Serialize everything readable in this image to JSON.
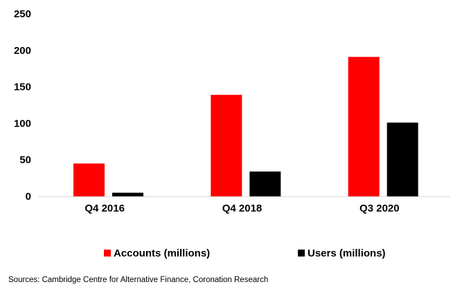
{
  "chart_data": {
    "type": "bar",
    "title": "",
    "xlabel": "",
    "ylabel": "",
    "categories": [
      "Q4 2016",
      "Q4 2018",
      "Q3 2020"
    ],
    "series": [
      {
        "name": "Accounts (millions)",
        "color": "#ff0000",
        "values": [
          45,
          139,
          191
        ]
      },
      {
        "name": "Users (millions)",
        "color": "#000000",
        "values": [
          5,
          34,
          101
        ]
      }
    ],
    "ylim": [
      0,
      250
    ],
    "yticks": [
      0,
      50,
      100,
      150,
      200,
      250
    ],
    "grid": false,
    "legend": "bottom"
  },
  "source": "Sources:  Cambridge Centre for Alternative Finance, Coronation Research"
}
